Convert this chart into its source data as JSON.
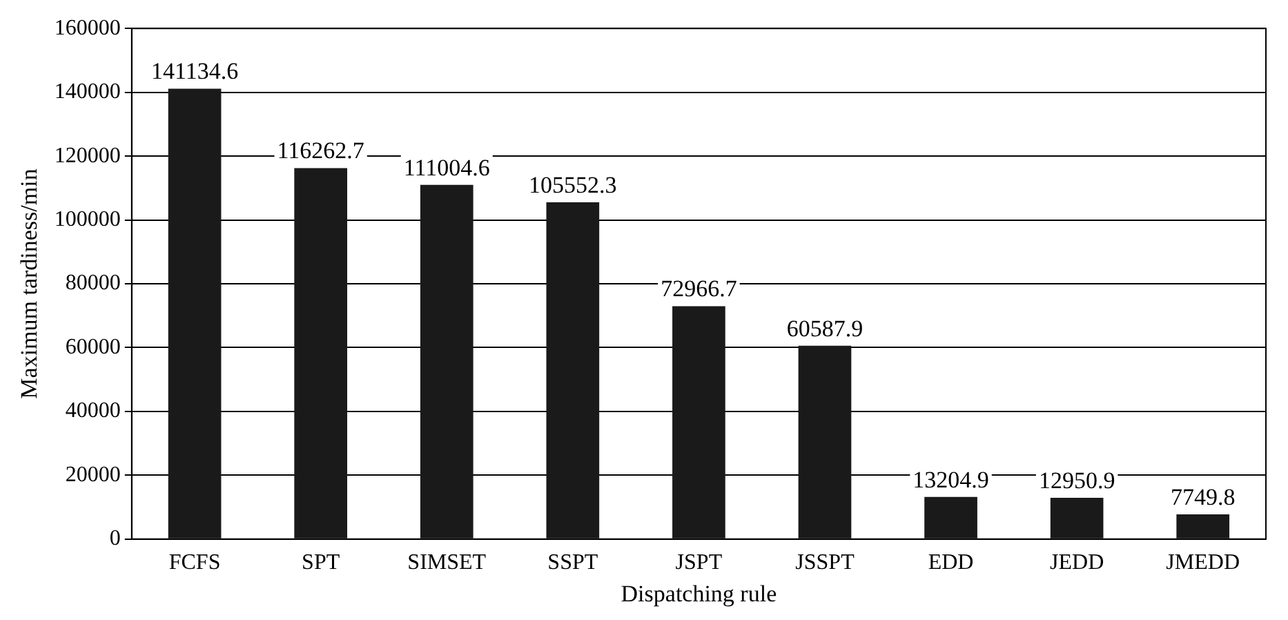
{
  "chart_data": {
    "type": "bar",
    "xlabel": "Dispatching rule",
    "ylabel": "Maximum tardiness/min",
    "categories": [
      "FCFS",
      "SPT",
      "SIMSET",
      "SSPT",
      "JSPT",
      "JSSPT",
      "EDD",
      "JEDD",
      "JMEDD"
    ],
    "values": [
      141134.6,
      116262.7,
      111004.6,
      105552.3,
      72966.7,
      60587.9,
      13204.9,
      12950.9,
      7749.8
    ],
    "color": "#1a1a1a",
    "ylim": [
      0,
      160000
    ],
    "yticks": [
      0,
      20000,
      40000,
      60000,
      80000,
      100000,
      120000,
      140000,
      160000
    ],
    "grid": "y",
    "data_labels": true,
    "legend": false
  }
}
